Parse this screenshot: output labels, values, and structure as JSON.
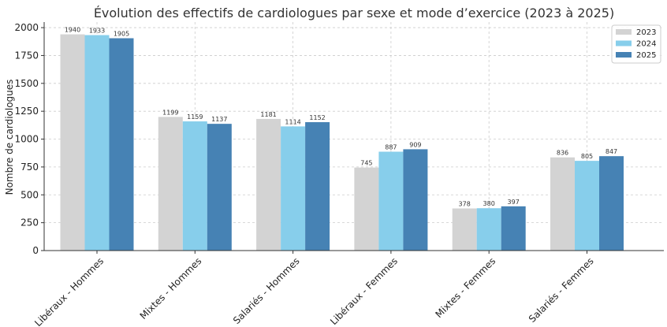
{
  "chart_data": {
    "type": "bar",
    "title": "Évolution des effectifs de cardiologues par sexe et mode d’exercice (2023 à 2025)",
    "xlabel": "",
    "ylabel": "Nombre de cardiologues",
    "ylim": [
      0,
      2050
    ],
    "yticks": [
      0,
      250,
      500,
      750,
      1000,
      1250,
      1500,
      1750,
      2000
    ],
    "grid": true,
    "legend_position": "top-right",
    "categories": [
      "Libéraux - Hommes",
      "Mixtes - Hommes",
      "Salariés - Hommes",
      "Libéraux - Femmes",
      "Mixtes - Femmes",
      "Salariés - Femmes"
    ],
    "series": [
      {
        "name": "2023",
        "color": "#d3d3d3",
        "values": [
          1940,
          1199,
          1181,
          745,
          378,
          836
        ]
      },
      {
        "name": "2024",
        "color": "#87ceeb",
        "values": [
          1933,
          1159,
          1114,
          887,
          380,
          805
        ]
      },
      {
        "name": "2025",
        "color": "#4682b4",
        "values": [
          1905,
          1137,
          1152,
          909,
          397,
          847
        ]
      }
    ]
  }
}
